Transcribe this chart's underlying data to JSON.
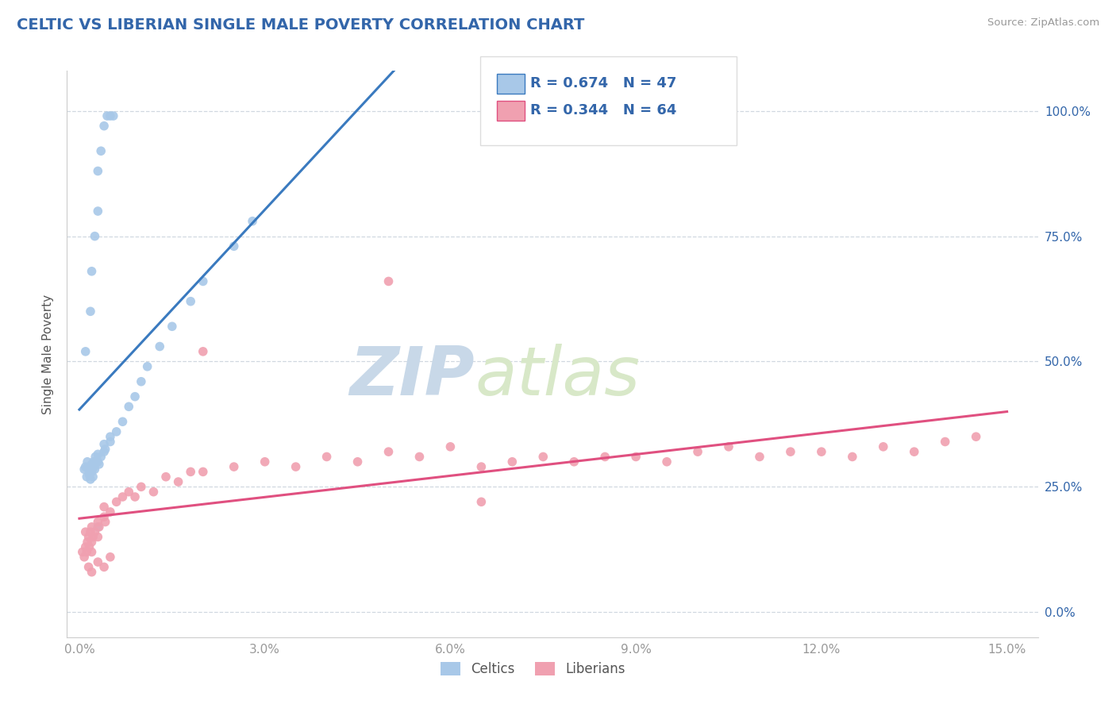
{
  "title": "CELTIC VS LIBERIAN SINGLE MALE POVERTY CORRELATION CHART",
  "source": "Source: ZipAtlas.com",
  "ylabel": "Single Male Poverty",
  "xlim": [
    -0.002,
    0.155
  ],
  "ylim": [
    -0.05,
    1.08
  ],
  "xticks": [
    0.0,
    0.03,
    0.06,
    0.09,
    0.12,
    0.15
  ],
  "xticklabels": [
    "0.0%",
    "3.0%",
    "6.0%",
    "9.0%",
    "12.0%",
    "15.0%"
  ],
  "yticks": [
    0.0,
    0.25,
    0.5,
    0.75,
    1.0
  ],
  "yticklabels": [
    "0.0%",
    "25.0%",
    "50.0%",
    "75.0%",
    "100.0%"
  ],
  "celtic_color": "#a8c8e8",
  "liberian_color": "#f0a0b0",
  "trend_celtic_color": "#3a7abf",
  "trend_liberian_color": "#e05080",
  "R_celtic": 0.674,
  "N_celtic": 47,
  "R_liberian": 0.344,
  "N_liberian": 64,
  "watermark_zip": "ZIP",
  "watermark_atlas": "atlas",
  "background_color": "#ffffff",
  "grid_color": "#d0d8e0",
  "title_color": "#3366aa",
  "legend_text_color": "#3366aa",
  "source_color": "#999999",
  "ylabel_color": "#555555",
  "tick_color": "#999999",
  "celtic_scatter": [
    [
      0.0008,
      0.285
    ],
    [
      0.001,
      0.29
    ],
    [
      0.0012,
      0.27
    ],
    [
      0.0013,
      0.3
    ],
    [
      0.0015,
      0.285
    ],
    [
      0.0016,
      0.275
    ],
    [
      0.0018,
      0.265
    ],
    [
      0.002,
      0.28
    ],
    [
      0.002,
      0.295
    ],
    [
      0.0022,
      0.27
    ],
    [
      0.0023,
      0.3
    ],
    [
      0.0024,
      0.29
    ],
    [
      0.0025,
      0.285
    ],
    [
      0.0026,
      0.31
    ],
    [
      0.003,
      0.3
    ],
    [
      0.003,
      0.315
    ],
    [
      0.0032,
      0.295
    ],
    [
      0.0035,
      0.31
    ],
    [
      0.004,
      0.32
    ],
    [
      0.004,
      0.335
    ],
    [
      0.0042,
      0.325
    ],
    [
      0.005,
      0.34
    ],
    [
      0.005,
      0.35
    ],
    [
      0.006,
      0.36
    ],
    [
      0.007,
      0.38
    ],
    [
      0.008,
      0.41
    ],
    [
      0.009,
      0.43
    ],
    [
      0.01,
      0.46
    ],
    [
      0.011,
      0.49
    ],
    [
      0.013,
      0.53
    ],
    [
      0.015,
      0.57
    ],
    [
      0.018,
      0.62
    ],
    [
      0.02,
      0.66
    ],
    [
      0.025,
      0.73
    ],
    [
      0.028,
      0.78
    ],
    [
      0.001,
      0.52
    ],
    [
      0.0018,
      0.6
    ],
    [
      0.002,
      0.68
    ],
    [
      0.0025,
      0.75
    ],
    [
      0.003,
      0.8
    ],
    [
      0.003,
      0.88
    ],
    [
      0.0035,
      0.92
    ],
    [
      0.004,
      0.97
    ],
    [
      0.0045,
      0.99
    ],
    [
      0.005,
      0.99
    ],
    [
      0.0055,
      0.99
    ],
    [
      0.003,
      0.17
    ]
  ],
  "liberian_scatter": [
    [
      0.0005,
      0.12
    ],
    [
      0.0008,
      0.11
    ],
    [
      0.001,
      0.13
    ],
    [
      0.001,
      0.16
    ],
    [
      0.0012,
      0.12
    ],
    [
      0.0013,
      0.14
    ],
    [
      0.0015,
      0.15
    ],
    [
      0.0016,
      0.13
    ],
    [
      0.0018,
      0.16
    ],
    [
      0.002,
      0.14
    ],
    [
      0.002,
      0.17
    ],
    [
      0.002,
      0.12
    ],
    [
      0.0022,
      0.15
    ],
    [
      0.0025,
      0.16
    ],
    [
      0.003,
      0.18
    ],
    [
      0.003,
      0.15
    ],
    [
      0.0032,
      0.17
    ],
    [
      0.004,
      0.19
    ],
    [
      0.004,
      0.21
    ],
    [
      0.0042,
      0.18
    ],
    [
      0.005,
      0.2
    ],
    [
      0.006,
      0.22
    ],
    [
      0.007,
      0.23
    ],
    [
      0.008,
      0.24
    ],
    [
      0.009,
      0.23
    ],
    [
      0.01,
      0.25
    ],
    [
      0.012,
      0.24
    ],
    [
      0.014,
      0.27
    ],
    [
      0.016,
      0.26
    ],
    [
      0.018,
      0.28
    ],
    [
      0.02,
      0.28
    ],
    [
      0.025,
      0.29
    ],
    [
      0.03,
      0.3
    ],
    [
      0.035,
      0.29
    ],
    [
      0.04,
      0.31
    ],
    [
      0.045,
      0.3
    ],
    [
      0.05,
      0.32
    ],
    [
      0.055,
      0.31
    ],
    [
      0.06,
      0.33
    ],
    [
      0.065,
      0.29
    ],
    [
      0.07,
      0.3
    ],
    [
      0.075,
      0.31
    ],
    [
      0.08,
      0.3
    ],
    [
      0.085,
      0.31
    ],
    [
      0.09,
      0.31
    ],
    [
      0.095,
      0.3
    ],
    [
      0.1,
      0.32
    ],
    [
      0.105,
      0.33
    ],
    [
      0.11,
      0.31
    ],
    [
      0.115,
      0.32
    ],
    [
      0.12,
      0.32
    ],
    [
      0.125,
      0.31
    ],
    [
      0.13,
      0.33
    ],
    [
      0.135,
      0.32
    ],
    [
      0.14,
      0.34
    ],
    [
      0.145,
      0.35
    ],
    [
      0.0015,
      0.09
    ],
    [
      0.002,
      0.08
    ],
    [
      0.003,
      0.1
    ],
    [
      0.004,
      0.09
    ],
    [
      0.005,
      0.11
    ],
    [
      0.05,
      0.66
    ],
    [
      0.065,
      0.22
    ],
    [
      0.02,
      0.52
    ]
  ]
}
